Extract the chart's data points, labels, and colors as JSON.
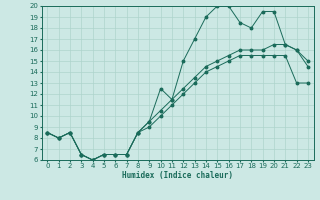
{
  "xlabel": "Humidex (Indice chaleur)",
  "bg_color": "#cce8e4",
  "line_color": "#1a6b5a",
  "grid_color": "#aed4cc",
  "xlim": [
    -0.5,
    23.5
  ],
  "ylim": [
    6,
    20
  ],
  "yticks": [
    6,
    7,
    8,
    9,
    10,
    11,
    12,
    13,
    14,
    15,
    16,
    17,
    18,
    19,
    20
  ],
  "xticks": [
    0,
    1,
    2,
    3,
    4,
    5,
    6,
    7,
    8,
    9,
    10,
    11,
    12,
    13,
    14,
    15,
    16,
    17,
    18,
    19,
    20,
    21,
    22,
    23
  ],
  "series1_x": [
    0,
    1,
    2,
    3,
    4,
    5,
    6,
    7,
    8,
    9,
    10,
    11,
    12,
    13,
    14,
    15,
    16,
    17,
    18,
    19,
    20,
    21,
    22,
    23
  ],
  "series1_y": [
    8.5,
    8.0,
    8.5,
    6.5,
    6.0,
    6.5,
    6.5,
    6.5,
    8.5,
    9.5,
    12.5,
    11.5,
    15.0,
    17.0,
    19.0,
    20.0,
    20.0,
    18.5,
    18.0,
    19.5,
    19.5,
    16.5,
    16.0,
    14.5
  ],
  "series2_x": [
    0,
    1,
    2,
    3,
    4,
    5,
    6,
    7,
    8,
    9,
    10,
    11,
    12,
    13,
    14,
    15,
    16,
    17,
    18,
    19,
    20,
    21,
    22,
    23
  ],
  "series2_y": [
    8.5,
    8.0,
    8.5,
    6.5,
    6.0,
    6.5,
    6.5,
    6.5,
    8.5,
    9.5,
    10.5,
    11.5,
    12.5,
    13.5,
    14.5,
    15.0,
    15.5,
    16.0,
    16.0,
    16.0,
    16.5,
    16.5,
    16.0,
    15.0
  ],
  "series3_x": [
    0,
    1,
    2,
    3,
    4,
    5,
    6,
    7,
    8,
    9,
    10,
    11,
    12,
    13,
    14,
    15,
    16,
    17,
    18,
    19,
    20,
    21,
    22,
    23
  ],
  "series3_y": [
    8.5,
    8.0,
    8.5,
    6.5,
    6.0,
    6.5,
    6.5,
    6.5,
    8.5,
    9.0,
    10.0,
    11.0,
    12.0,
    13.0,
    14.0,
    14.5,
    15.0,
    15.5,
    15.5,
    15.5,
    15.5,
    15.5,
    13.0,
    13.0
  ],
  "xlabel_fontsize": 5.5,
  "tick_fontsize": 5,
  "lw": 0.7,
  "ms": 1.8
}
